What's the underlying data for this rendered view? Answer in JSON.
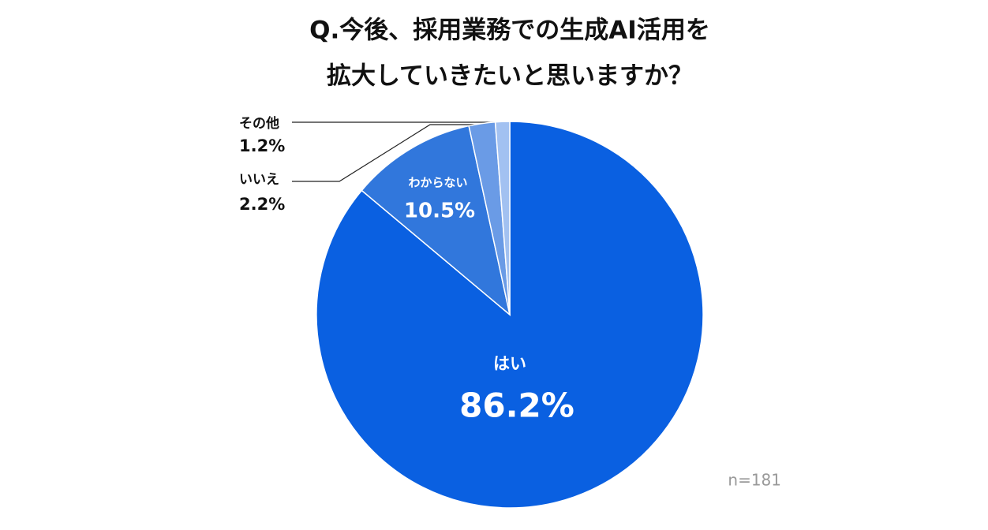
{
  "chart_data": {
    "type": "pie",
    "title": [
      "Q.今後、採用業務での生成AI活用を",
      "拡大していきたいと思いますか？"
    ],
    "categories": [
      "はい",
      "わからない",
      "いいえ",
      "その他"
    ],
    "values": [
      86.2,
      10.5,
      2.2,
      1.2
    ],
    "value_labels": [
      "86.2%",
      "10.5%",
      "2.2%",
      "1.2%"
    ],
    "colors": [
      "#0a60e1",
      "#3177dc",
      "#6a9be6",
      "#a2c1f1"
    ],
    "note": "n=181"
  }
}
